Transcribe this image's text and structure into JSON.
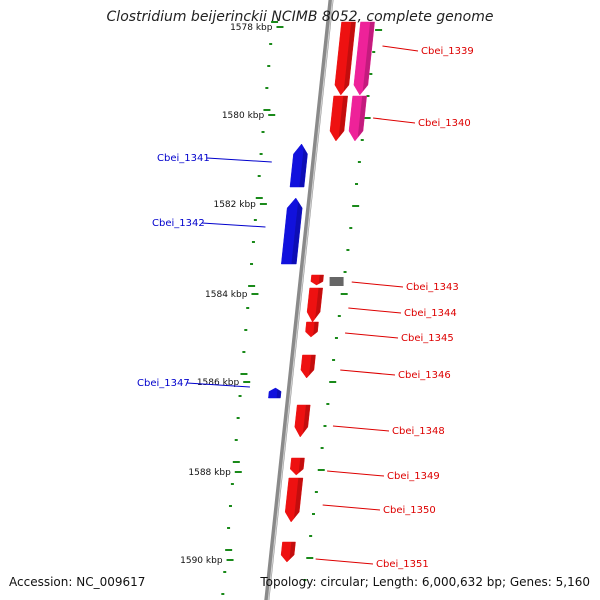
{
  "title": "Clostridium beijerinckii NCIMB 8052, complete genome",
  "footer": {
    "accession": "Accession: NC_009617",
    "topology": "Topology: circular; Length: 6,000,632 bp; Genes: 5,160"
  },
  "colors": {
    "backbone": "#8a8a8a",
    "tick": "#1a8a1a",
    "forward_gene": "#ee1111",
    "forward_gene_alt": "#ee2299",
    "reverse_gene": "#1111dd",
    "other_feature": "#666666",
    "forward_label": "#dd0000",
    "reverse_label": "#0000cc"
  },
  "scale_labels": [
    "1578 kbp",
    "1580 kbp",
    "1582 kbp",
    "1584 kbp",
    "1586 kbp",
    "1588 kbp",
    "1590 kbp"
  ],
  "genes": [
    {
      "name": "Cbei_1339",
      "strand": "forward",
      "color": "forward_gene"
    },
    {
      "name": "Cbei_1340",
      "strand": "forward",
      "color": "forward_gene"
    },
    {
      "name": "Cbei_1341",
      "strand": "reverse",
      "color": "reverse_gene"
    },
    {
      "name": "Cbei_1342",
      "strand": "reverse",
      "color": "reverse_gene"
    },
    {
      "name": "Cbei_1343",
      "strand": "forward",
      "color": "forward_gene"
    },
    {
      "name": "Cbei_1344",
      "strand": "forward",
      "color": "forward_gene"
    },
    {
      "name": "Cbei_1345",
      "strand": "forward",
      "color": "forward_gene"
    },
    {
      "name": "Cbei_1346",
      "strand": "forward",
      "color": "forward_gene"
    },
    {
      "name": "Cbei_1347",
      "strand": "reverse",
      "color": "reverse_gene"
    },
    {
      "name": "Cbei_1348",
      "strand": "forward",
      "color": "forward_gene"
    },
    {
      "name": "Cbei_1349",
      "strand": "forward",
      "color": "forward_gene"
    },
    {
      "name": "Cbei_1350",
      "strand": "forward",
      "color": "forward_gene"
    },
    {
      "name": "Cbei_1351",
      "strand": "forward",
      "color": "forward_gene"
    }
  ]
}
